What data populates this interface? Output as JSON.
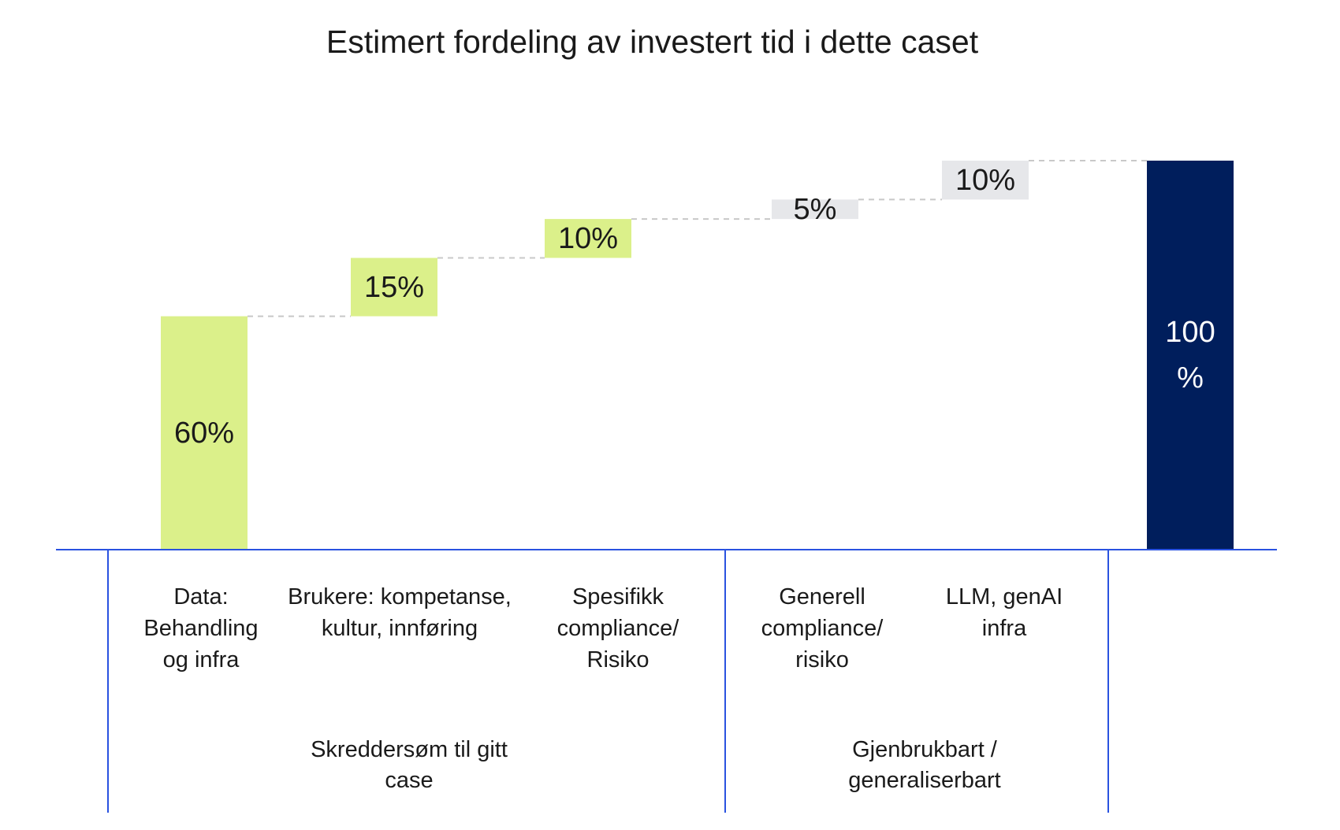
{
  "chart_data": {
    "type": "waterfall",
    "title": "Estimert fordeling av investert tid i dette caset",
    "categories": [
      "Data: Behandling og infra",
      "Brukere: kompetanse, kultur, innføring",
      "Spesifikk compliance/ Risiko",
      "Generell compliance/ risiko",
      "LLM, genAI infra",
      null
    ],
    "values": [
      60,
      15,
      10,
      5,
      10,
      100
    ],
    "value_labels": [
      "60%",
      "15%",
      "10%",
      "5%",
      "10%",
      "100 %"
    ],
    "is_total": [
      false,
      false,
      false,
      false,
      false,
      true
    ],
    "colors": [
      "#dbf08a",
      "#dbf08a",
      "#dbf08a",
      "#e6e7ea",
      "#e6e7ea",
      "#001e5c"
    ],
    "groups": [
      "Skreddersøm til gitt case",
      "Gjenbrukbart / generaliserbart"
    ],
    "axis_color": "#2a52e0"
  }
}
